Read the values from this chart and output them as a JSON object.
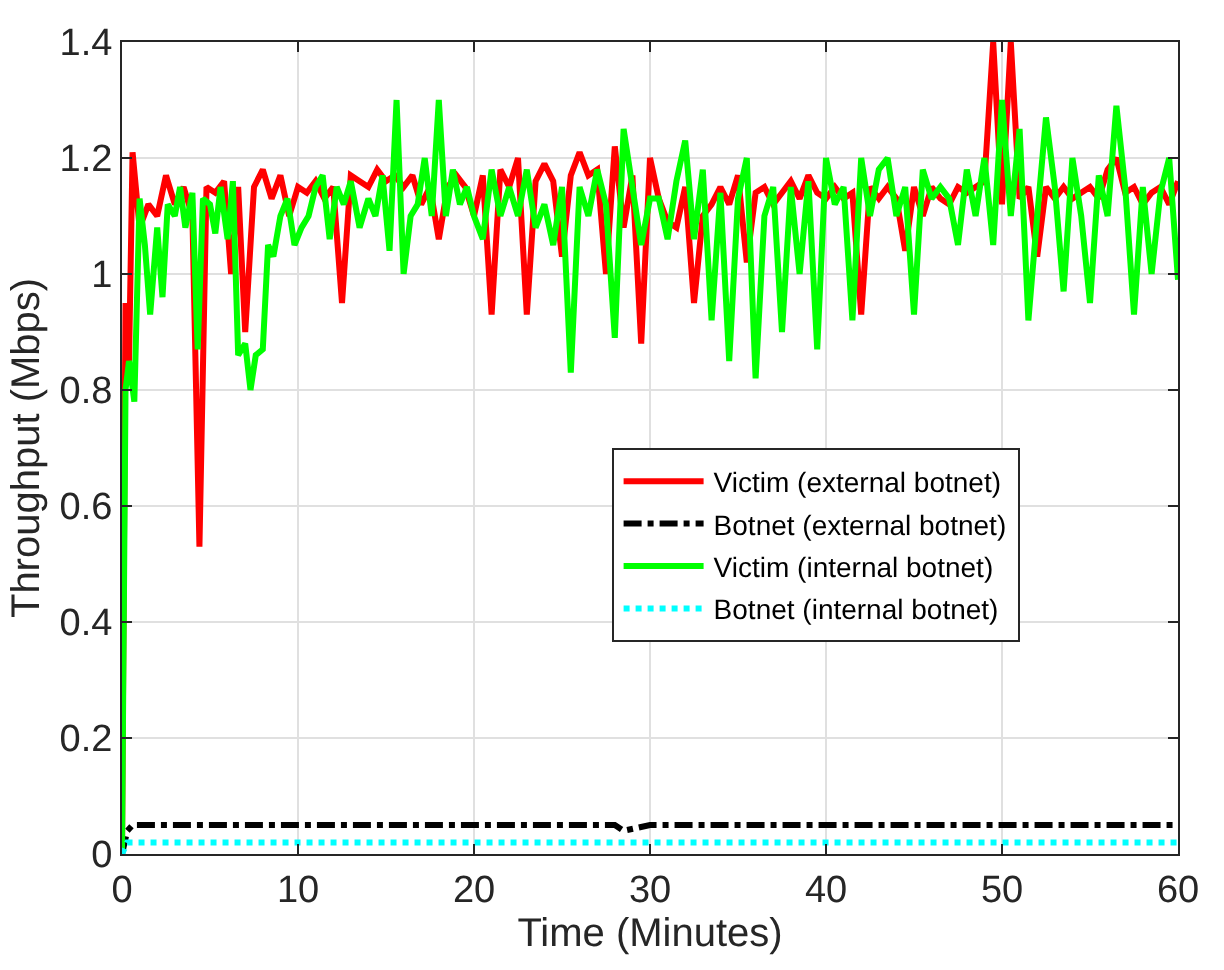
{
  "chart_data": {
    "type": "line",
    "xlabel": "Time (Minutes)",
    "ylabel": "Throughput (Mbps)",
    "xlim": [
      0,
      60
    ],
    "xticks": [
      0,
      10,
      20,
      30,
      40,
      50,
      60
    ],
    "ylim": [
      0,
      1.4
    ],
    "yticks": [
      0,
      0.2,
      0.4,
      0.6,
      0.8,
      1,
      1.2,
      1.4
    ],
    "grid": true,
    "legend": "right",
    "marker": "none",
    "series": [
      {
        "name": "Victim (external botnet)",
        "color": "#ff0000",
        "line_style": "solid",
        "x": [
          0,
          0.2,
          0.4,
          0.6,
          1,
          1.5,
          2,
          2.5,
          3,
          3.5,
          4,
          4.4,
          4.8,
          5.3,
          5.8,
          6.2,
          6.6,
          7,
          7.5,
          8,
          8.5,
          9,
          9.5,
          10,
          10.5,
          11,
          11.5,
          12,
          12.5,
          13,
          13.5,
          14,
          14.5,
          15,
          15.5,
          16,
          16.5,
          17,
          17.5,
          18,
          18.5,
          19,
          19.5,
          20,
          20.5,
          21,
          21.5,
          22,
          22.5,
          23,
          23.5,
          24,
          24.5,
          25,
          25.5,
          26,
          26.5,
          27,
          27.5,
          28,
          28.5,
          29,
          29.5,
          30,
          30.5,
          31,
          31.5,
          32,
          32.5,
          33,
          33.5,
          34,
          34.5,
          35,
          35.5,
          36,
          36.5,
          37,
          37.5,
          38,
          38.5,
          39,
          39.5,
          40,
          40.5,
          41,
          41.5,
          42,
          42.5,
          43,
          43.5,
          44,
          44.5,
          45,
          45.5,
          46,
          46.5,
          47,
          47.5,
          48,
          48.5,
          49,
          49.5,
          50,
          50.5,
          51,
          51.5,
          52,
          52.5,
          53,
          53.5,
          54,
          54.5,
          55,
          55.5,
          56,
          56.5,
          57,
          57.5,
          58,
          58.5,
          59,
          59.5,
          60
        ],
        "values": [
          0,
          0.95,
          0.85,
          1.21,
          1.08,
          1.12,
          1.1,
          1.17,
          1.12,
          1.15,
          1.1,
          0.53,
          1.15,
          1.14,
          1.16,
          1.0,
          1.15,
          0.9,
          1.15,
          1.18,
          1.13,
          1.17,
          1.1,
          1.15,
          1.14,
          1.16,
          1.13,
          1.15,
          0.95,
          1.17,
          1.16,
          1.15,
          1.18,
          1.16,
          1.17,
          1.15,
          1.17,
          1.12,
          1.15,
          1.06,
          1.15,
          1.17,
          1.15,
          1.1,
          1.17,
          0.93,
          1.18,
          1.15,
          1.2,
          0.93,
          1.16,
          1.19,
          1.16,
          1.03,
          1.17,
          1.21,
          1.17,
          1.18,
          1.0,
          1.22,
          1.08,
          1.17,
          0.88,
          1.2,
          1.13,
          1.09,
          1.08,
          1.15,
          0.95,
          1.1,
          1.12,
          1.15,
          1.12,
          1.17,
          1.02,
          1.14,
          1.15,
          1.12,
          1.14,
          1.16,
          1.13,
          1.17,
          1.14,
          1.13,
          1.15,
          1.13,
          1.14,
          0.93,
          1.15,
          1.13,
          1.15,
          1.13,
          1.04,
          1.15,
          1.1,
          1.15,
          1.13,
          1.12,
          1.15,
          1.14,
          1.15,
          1.16,
          1.4,
          1.12,
          1.4,
          1.13,
          1.15,
          1.03,
          1.15,
          1.13,
          1.15,
          1.13,
          1.14,
          1.15,
          1.13,
          1.18,
          1.2,
          1.14,
          1.15,
          1.12,
          1.14,
          1.15,
          1.12,
          1.16
        ]
      },
      {
        "name": "Botnet (external botnet)",
        "color": "#000000",
        "line_style": "dashed",
        "x": [
          0,
          0.3,
          0.6,
          10,
          20,
          28,
          28.5,
          30,
          40,
          50,
          60
        ],
        "values": [
          0,
          0.04,
          0.05,
          0.05,
          0.05,
          0.05,
          0.04,
          0.05,
          0.05,
          0.05,
          0.05
        ]
      },
      {
        "name": "Victim (internal botnet)",
        "color": "#00ff00",
        "line_style": "solid",
        "x": [
          0,
          0.2,
          0.4,
          0.7,
          1,
          1.3,
          1.6,
          2,
          2.3,
          2.6,
          3,
          3.3,
          3.6,
          4,
          4.3,
          4.6,
          5,
          5.3,
          5.6,
          6,
          6.3,
          6.6,
          7,
          7.3,
          7.6,
          8,
          8.3,
          8.6,
          9,
          9.4,
          9.8,
          10.2,
          10.6,
          11,
          11.4,
          11.8,
          12.2,
          12.6,
          13,
          13.5,
          14,
          14.4,
          14.8,
          15.2,
          15.6,
          16,
          16.4,
          16.8,
          17.2,
          17.6,
          18,
          18.4,
          18.8,
          19.2,
          19.6,
          20,
          20.5,
          21,
          21.5,
          22,
          22.5,
          23,
          23.5,
          24,
          24.5,
          25,
          25.5,
          26,
          26.5,
          27,
          27.5,
          28,
          28.5,
          29,
          29.5,
          30,
          30.5,
          31,
          31.5,
          32,
          32.5,
          33,
          33.5,
          34,
          34.5,
          35,
          35.5,
          36,
          36.5,
          37,
          37.5,
          38,
          38.5,
          39,
          39.5,
          40,
          40.5,
          41,
          41.5,
          42,
          42.5,
          43,
          43.5,
          44,
          44.5,
          45,
          45.5,
          46,
          46.5,
          47,
          47.5,
          48,
          48.5,
          49,
          49.5,
          50,
          50.5,
          51,
          51.5,
          52,
          52.5,
          53,
          53.5,
          54,
          54.5,
          55,
          55.5,
          56,
          56.5,
          57,
          57.5,
          58,
          58.5,
          59,
          59.5,
          60
        ],
        "values": [
          0,
          0.8,
          0.85,
          0.78,
          1.13,
          1.05,
          0.93,
          1.08,
          0.96,
          1.12,
          1.1,
          1.15,
          1.08,
          1.14,
          0.87,
          1.13,
          1.12,
          1.07,
          1.15,
          1.06,
          1.16,
          0.86,
          0.88,
          0.8,
          0.86,
          0.87,
          1.05,
          1.03,
          1.1,
          1.13,
          1.05,
          1.08,
          1.1,
          1.15,
          1.17,
          1.06,
          1.15,
          1.12,
          1.16,
          1.08,
          1.13,
          1.1,
          1.17,
          1.04,
          1.3,
          1.0,
          1.1,
          1.12,
          1.2,
          1.1,
          1.3,
          1.1,
          1.18,
          1.12,
          1.15,
          1.1,
          1.06,
          1.18,
          1.1,
          1.15,
          1.1,
          1.18,
          1.08,
          1.12,
          1.05,
          1.15,
          0.83,
          1.15,
          1.1,
          1.18,
          1.12,
          0.89,
          1.25,
          1.15,
          1.05,
          1.13,
          1.13,
          1.06,
          1.16,
          1.23,
          1.06,
          1.18,
          0.92,
          1.14,
          0.85,
          1.13,
          1.2,
          0.82,
          1.1,
          1.15,
          0.9,
          1.15,
          1.0,
          1.16,
          0.87,
          1.2,
          1.12,
          1.15,
          0.92,
          1.2,
          1.1,
          1.18,
          1.2,
          1.1,
          1.15,
          0.93,
          1.18,
          1.13,
          1.15,
          1.13,
          1.05,
          1.18,
          1.1,
          1.2,
          1.05,
          1.3,
          1.1,
          1.25,
          0.92,
          1.1,
          1.27,
          1.15,
          0.97,
          1.2,
          1.1,
          0.95,
          1.17,
          1.1,
          1.29,
          1.15,
          0.93,
          1.15,
          1.0,
          1.14,
          1.2,
          0.99
        ]
      },
      {
        "name": "Botnet (internal botnet)",
        "color": "#00ffff",
        "line_style": "dotted",
        "x": [
          0,
          0.3,
          0.6,
          10,
          20,
          30,
          40,
          50,
          60
        ],
        "values": [
          0,
          0.02,
          0.02,
          0.02,
          0.02,
          0.02,
          0.02,
          0.02,
          0.02
        ]
      }
    ]
  }
}
